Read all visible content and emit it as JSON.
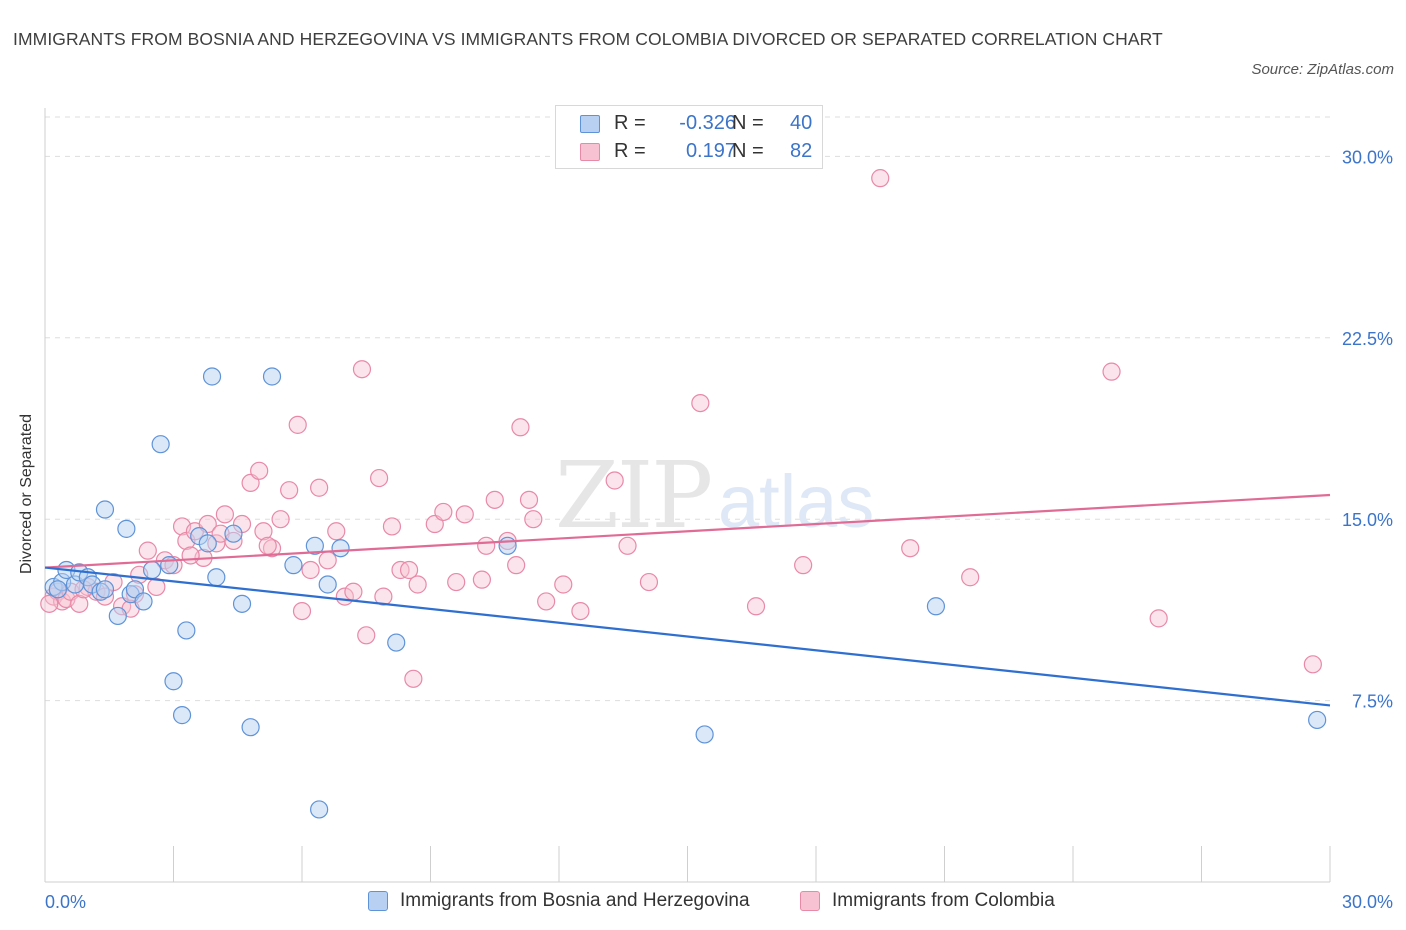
{
  "title": "IMMIGRANTS FROM BOSNIA AND HERZEGOVINA VS IMMIGRANTS FROM COLOMBIA DIVORCED OR SEPARATED CORRELATION CHART",
  "source": "Source: ZipAtlas.com",
  "watermark": "ZIPatlas",
  "legend": {
    "rows": [
      {
        "r_label": "R =",
        "r_value": "-0.326",
        "n_label": "N =",
        "n_value": "40"
      },
      {
        "r_label": "R =",
        "r_value": "0.197",
        "n_label": "N =",
        "n_value": "82"
      }
    ]
  },
  "colors": {
    "bosnia_fill": "#b8d1f2",
    "bosnia_stroke": "#5f93d8",
    "bosnia_line": "#2f6fd0",
    "colombia_fill": "#f7c3d3",
    "colombia_stroke": "#e889a8",
    "colombia_line": "#e06b95",
    "tick_text": "#3b74c9",
    "grid": "#dddddd"
  },
  "chart_data": {
    "type": "scatter",
    "title": "IMMIGRANTS FROM BOSNIA AND HERZEGOVINA VS IMMIGRANTS FROM COLOMBIA DIVORCED OR SEPARATED CORRELATION CHART",
    "xlabel": "",
    "ylabel": "Divorced or Separated",
    "xlim": [
      0,
      30
    ],
    "ylim": [
      0,
      32
    ],
    "x_tick_labels": [
      "0.0%",
      "30.0%"
    ],
    "y_ticks": [
      7.5,
      15.0,
      22.5,
      30.0
    ],
    "y_tick_labels": [
      "7.5%",
      "15.0%",
      "22.5%",
      "30.0%"
    ],
    "grid": true,
    "legend_position": "bottom",
    "series": [
      {
        "name": "Immigrants from Bosnia and Herzegovina",
        "r": -0.326,
        "n": 40,
        "trend": [
          [
            0,
            13.0
          ],
          [
            30,
            7.3
          ]
        ],
        "points": [
          [
            0.2,
            12.2
          ],
          [
            0.4,
            12.4
          ],
          [
            0.5,
            12.9
          ],
          [
            0.7,
            12.3
          ],
          [
            0.8,
            12.8
          ],
          [
            1.0,
            12.6
          ],
          [
            1.1,
            12.3
          ],
          [
            1.3,
            12.0
          ],
          [
            1.4,
            12.1
          ],
          [
            1.7,
            11.0
          ],
          [
            1.9,
            14.6
          ],
          [
            2.0,
            11.9
          ],
          [
            2.1,
            12.1
          ],
          [
            2.3,
            11.6
          ],
          [
            2.5,
            12.9
          ],
          [
            2.7,
            18.1
          ],
          [
            2.9,
            13.1
          ],
          [
            3.0,
            8.3
          ],
          [
            3.2,
            6.9
          ],
          [
            3.3,
            10.4
          ],
          [
            3.6,
            14.3
          ],
          [
            3.8,
            14.0
          ],
          [
            3.9,
            20.9
          ],
          [
            4.0,
            12.6
          ],
          [
            4.4,
            14.4
          ],
          [
            4.6,
            11.5
          ],
          [
            4.8,
            6.4
          ],
          [
            5.3,
            20.9
          ],
          [
            5.8,
            13.1
          ],
          [
            6.3,
            13.9
          ],
          [
            6.4,
            3.0
          ],
          [
            6.6,
            12.3
          ],
          [
            6.9,
            13.8
          ],
          [
            8.2,
            9.9
          ],
          [
            10.8,
            13.9
          ],
          [
            15.4,
            6.1
          ],
          [
            20.8,
            11.4
          ],
          [
            29.7,
            6.7
          ],
          [
            0.3,
            12.1
          ],
          [
            1.4,
            15.4
          ]
        ]
      },
      {
        "name": "Immigrants from Colombia",
        "r": 0.197,
        "n": 82,
        "trend": [
          [
            0,
            13.0
          ],
          [
            30,
            16.0
          ]
        ],
        "points": [
          [
            0.2,
            11.8
          ],
          [
            0.3,
            12.0
          ],
          [
            0.4,
            11.6
          ],
          [
            0.5,
            11.7
          ],
          [
            0.6,
            12.0
          ],
          [
            0.8,
            11.5
          ],
          [
            1.0,
            12.2
          ],
          [
            1.2,
            12.0
          ],
          [
            1.4,
            11.8
          ],
          [
            1.6,
            12.4
          ],
          [
            1.8,
            11.4
          ],
          [
            2.1,
            11.9
          ],
          [
            2.2,
            12.7
          ],
          [
            2.4,
            13.7
          ],
          [
            2.6,
            12.2
          ],
          [
            2.8,
            13.3
          ],
          [
            3.0,
            13.1
          ],
          [
            3.2,
            14.7
          ],
          [
            3.3,
            14.1
          ],
          [
            3.5,
            14.5
          ],
          [
            3.7,
            13.4
          ],
          [
            3.8,
            14.8
          ],
          [
            4.0,
            14.0
          ],
          [
            4.1,
            14.4
          ],
          [
            4.2,
            15.2
          ],
          [
            4.4,
            14.1
          ],
          [
            4.6,
            14.8
          ],
          [
            4.8,
            16.5
          ],
          [
            5.0,
            17.0
          ],
          [
            5.1,
            14.5
          ],
          [
            5.3,
            13.8
          ],
          [
            5.5,
            15.0
          ],
          [
            5.7,
            16.2
          ],
          [
            5.9,
            18.9
          ],
          [
            6.0,
            11.2
          ],
          [
            6.2,
            12.9
          ],
          [
            6.4,
            16.3
          ],
          [
            6.6,
            13.3
          ],
          [
            6.8,
            14.5
          ],
          [
            7.0,
            11.8
          ],
          [
            7.2,
            12.0
          ],
          [
            7.4,
            21.2
          ],
          [
            7.5,
            10.2
          ],
          [
            7.8,
            16.7
          ],
          [
            7.9,
            11.8
          ],
          [
            8.1,
            14.7
          ],
          [
            8.3,
            12.9
          ],
          [
            8.5,
            12.9
          ],
          [
            8.6,
            8.4
          ],
          [
            8.7,
            12.3
          ],
          [
            9.1,
            14.8
          ],
          [
            9.3,
            15.3
          ],
          [
            9.6,
            12.4
          ],
          [
            9.8,
            15.2
          ],
          [
            10.2,
            12.5
          ],
          [
            10.3,
            13.9
          ],
          [
            10.5,
            15.8
          ],
          [
            10.8,
            14.1
          ],
          [
            11.0,
            13.1
          ],
          [
            11.1,
            18.8
          ],
          [
            11.3,
            15.8
          ],
          [
            11.4,
            15.0
          ],
          [
            11.7,
            11.6
          ],
          [
            12.1,
            12.3
          ],
          [
            12.5,
            11.2
          ],
          [
            13.3,
            16.6
          ],
          [
            13.6,
            13.9
          ],
          [
            14.1,
            12.4
          ],
          [
            15.3,
            19.8
          ],
          [
            16.6,
            11.4
          ],
          [
            17.7,
            13.1
          ],
          [
            19.5,
            29.1
          ],
          [
            20.2,
            13.8
          ],
          [
            21.6,
            12.6
          ],
          [
            24.9,
            21.1
          ],
          [
            26.0,
            10.9
          ],
          [
            29.6,
            9.0
          ],
          [
            0.1,
            11.5
          ],
          [
            0.9,
            12.1
          ],
          [
            2.0,
            11.3
          ],
          [
            3.4,
            13.5
          ],
          [
            5.2,
            13.9
          ]
        ]
      }
    ]
  },
  "bottom_legend": {
    "bosnia_label": "Immigrants from Bosnia and Herzegovina",
    "colombia_label": "Immigrants from Colombia"
  }
}
